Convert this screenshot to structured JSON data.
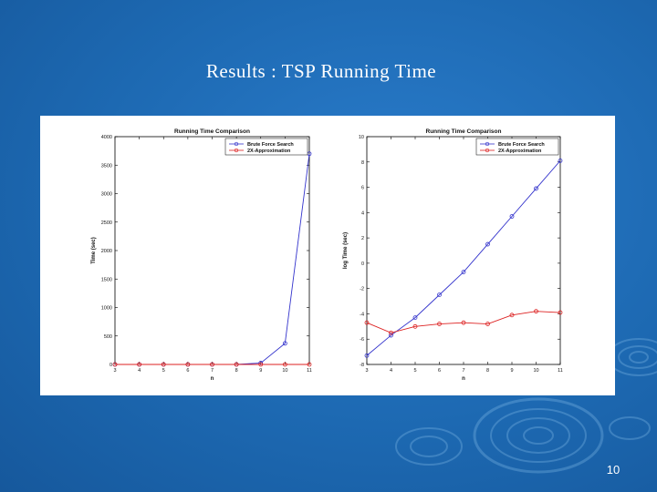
{
  "slide": {
    "title": "Results : TSP Running Time",
    "page_number": "10",
    "background_color": "#1e6cb4"
  },
  "chart_data": [
    {
      "type": "line",
      "title": "Running Time Comparison",
      "xlabel": "n",
      "ylabel": "Time (sec)",
      "x": [
        3,
        4,
        5,
        6,
        7,
        8,
        9,
        10,
        11
      ],
      "xlim": [
        3,
        11
      ],
      "ylim": [
        0,
        4000
      ],
      "xticks": [
        3,
        4,
        5,
        6,
        7,
        8,
        9,
        10,
        11
      ],
      "yticks": [
        0,
        500,
        1000,
        1500,
        2000,
        2500,
        3000,
        3500,
        4000
      ],
      "legend_position": "top-right",
      "grid": false,
      "series": [
        {
          "name": "Brute Force Search",
          "color": "#3333cc",
          "marker": "o",
          "values": [
            0,
            0,
            0,
            0,
            0,
            0,
            25,
            370,
            3700
          ]
        },
        {
          "name": "2X-Approximation",
          "color": "#dd2222",
          "marker": "o",
          "values": [
            0,
            0,
            0,
            0,
            0,
            0,
            0,
            0,
            0
          ]
        }
      ]
    },
    {
      "type": "line",
      "title": "Running Time Comparison",
      "xlabel": "n",
      "ylabel": "log Time (sec)",
      "x": [
        3,
        4,
        5,
        6,
        7,
        8,
        9,
        10,
        11
      ],
      "xlim": [
        3,
        11
      ],
      "ylim": [
        -8,
        10
      ],
      "xticks": [
        3,
        4,
        5,
        6,
        7,
        8,
        9,
        10,
        11
      ],
      "yticks": [
        -8,
        -6,
        -4,
        -2,
        0,
        2,
        4,
        6,
        8,
        10
      ],
      "legend_position": "top-right",
      "grid": false,
      "series": [
        {
          "name": "Brute Force Search",
          "color": "#3333cc",
          "marker": "o",
          "values": [
            -7.3,
            -5.7,
            -4.3,
            -2.5,
            -0.7,
            1.5,
            3.7,
            5.9,
            8.1
          ]
        },
        {
          "name": "2X-Approximation",
          "color": "#dd2222",
          "marker": "o",
          "values": [
            -4.7,
            -5.5,
            -5.0,
            -4.8,
            -4.7,
            -4.8,
            -4.1,
            -3.8,
            -3.9
          ]
        }
      ]
    }
  ]
}
